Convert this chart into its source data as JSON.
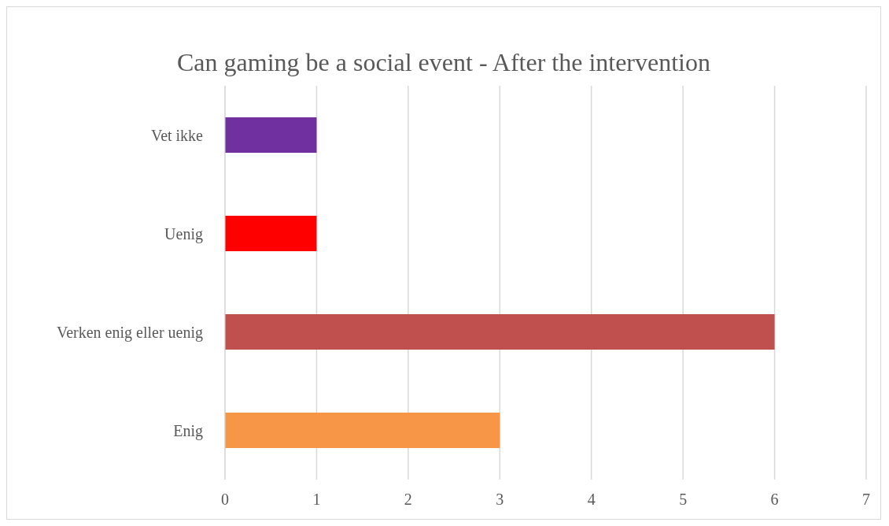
{
  "chart_data": {
    "type": "bar",
    "orientation": "horizontal",
    "title": "Can gaming be a social event - After the intervention",
    "categories": [
      "Vet ikke",
      "Uenig",
      "Verken enig eller uenig",
      "Enig"
    ],
    "values": [
      1,
      1,
      6,
      3
    ],
    "colors": [
      "#7030a0",
      "#ff0000",
      "#c0504d",
      "#f79646"
    ],
    "xlim": [
      0,
      7
    ],
    "xticks": [
      0,
      1,
      2,
      3,
      4,
      5,
      6,
      7
    ],
    "grid": "x",
    "legend": false
  }
}
